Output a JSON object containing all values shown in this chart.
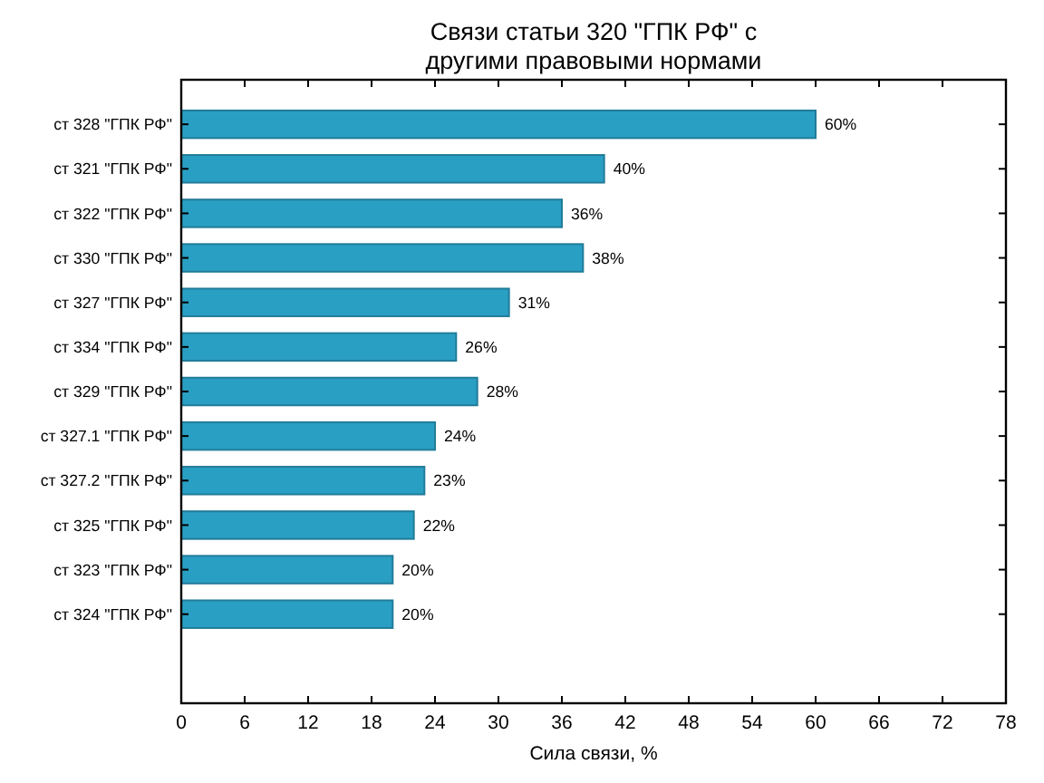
{
  "chart_data": {
    "type": "bar",
    "orientation": "horizontal",
    "title": "Связи статьи 320 \"ГПК РФ\" с\nдругими правовыми нормами",
    "xlabel": "Сила связи, %",
    "categories": [
      "ст 328 \"ГПК РФ\"",
      "ст 321 \"ГПК РФ\"",
      "ст 322 \"ГПК РФ\"",
      "ст 330 \"ГПК РФ\"",
      "ст 327 \"ГПК РФ\"",
      "ст 334 \"ГПК РФ\"",
      "ст 329 \"ГПК РФ\"",
      "ст 327.1 \"ГПК РФ\"",
      "ст 327.2 \"ГПК РФ\"",
      "ст 325 \"ГПК РФ\"",
      "ст 323 \"ГПК РФ\"",
      "ст 324 \"ГПК РФ\""
    ],
    "values": [
      60,
      40,
      36,
      38,
      31,
      26,
      28,
      24,
      23,
      22,
      20,
      20
    ],
    "value_labels": [
      "60%",
      "40%",
      "36%",
      "38%",
      "31%",
      "26%",
      "28%",
      "24%",
      "23%",
      "22%",
      "20%",
      "20%"
    ],
    "color": "#2a9fc4",
    "xlim": [
      0,
      78
    ],
    "xticks": [
      0,
      6,
      12,
      18,
      24,
      30,
      36,
      42,
      48,
      54,
      60,
      66,
      72,
      78
    ],
    "grid": false
  }
}
